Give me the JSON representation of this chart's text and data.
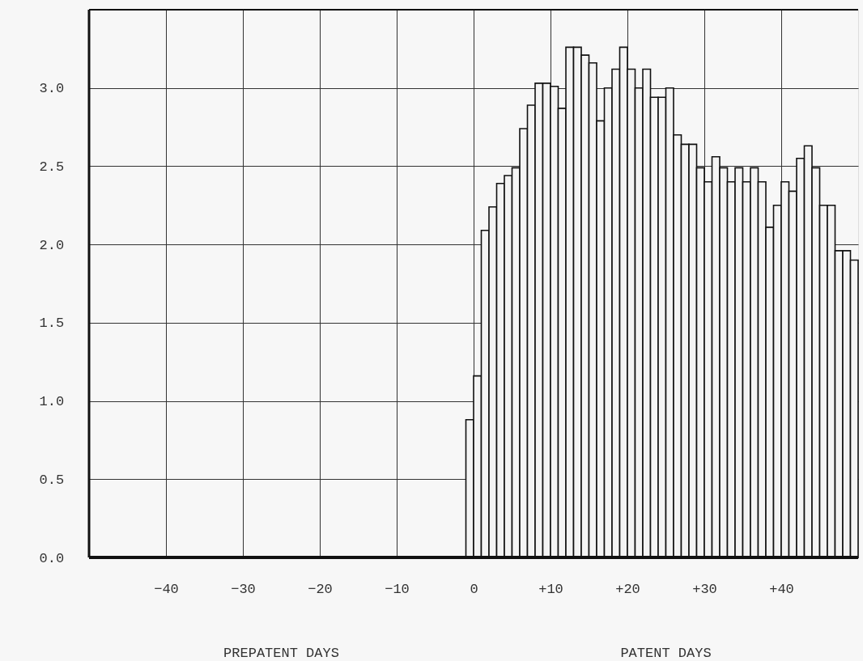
{
  "chart_data": {
    "type": "histogram",
    "bins": [
      -1,
      0,
      1,
      2,
      3,
      4,
      5,
      6,
      7,
      8,
      9,
      10,
      11,
      12,
      13,
      14,
      15,
      16,
      17,
      18,
      19,
      20,
      21,
      22,
      23,
      24,
      25,
      26,
      27,
      28,
      29,
      30,
      31,
      32,
      33,
      34,
      35,
      36,
      37,
      38,
      39,
      40,
      41,
      42,
      43,
      44,
      45,
      46,
      47,
      48,
      49,
      50
    ],
    "values": [
      0.88,
      1.16,
      2.09,
      2.24,
      2.39,
      2.44,
      2.49,
      2.74,
      2.89,
      3.03,
      3.03,
      3.01,
      2.87,
      3.26,
      3.26,
      3.21,
      3.16,
      2.79,
      3.0,
      3.12,
      3.26,
      3.12,
      3.0,
      3.12,
      2.94,
      2.94,
      3.0,
      2.7,
      2.64,
      2.64,
      2.49,
      2.4,
      2.56,
      2.49,
      2.4,
      2.49,
      2.4,
      2.49,
      2.4,
      2.11,
      2.25,
      2.4,
      2.34,
      2.55,
      2.63,
      2.49,
      2.25,
      2.25,
      1.96,
      1.96,
      1.9
    ],
    "color": "#f4f4f4",
    "xlim": [
      -50,
      50
    ],
    "xticks": [
      -40,
      -30,
      -20,
      -10,
      0,
      {
        "value": 10,
        "label": "+10"
      },
      {
        "value": 20,
        "label": "+20"
      },
      {
        "value": 30,
        "label": "+30"
      },
      {
        "value": 40,
        "label": "+40"
      }
    ],
    "ylim": [
      0,
      3.5
    ],
    "yticks": [
      {
        "value": 0,
        "label": "0.0"
      },
      {
        "value": 0.5,
        "label": "0.5"
      },
      {
        "value": 1,
        "label": "1.0"
      },
      {
        "value": 1.5,
        "label": "1.5"
      },
      {
        "value": 2,
        "label": "2.0"
      },
      {
        "value": 2.5,
        "label": "2.5"
      },
      {
        "value": 3,
        "label": "3.0"
      }
    ],
    "grid": true,
    "annotations": [
      "PREPATENT DAYS",
      "PATENT DAYS"
    ]
  }
}
